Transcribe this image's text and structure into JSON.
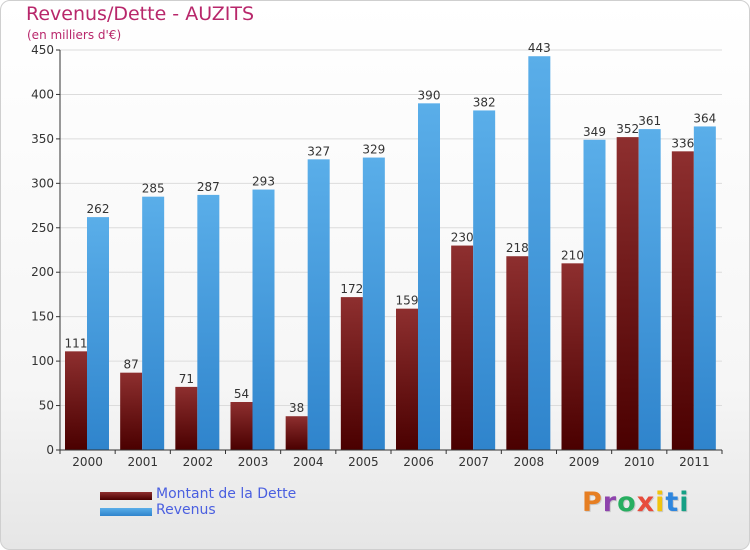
{
  "header": {
    "title": "Revenus/Dette - AUZITS",
    "subtitle": "(en milliers d'€)"
  },
  "chart_data": {
    "type": "bar",
    "title": "Revenus/Dette - AUZITS",
    "ylabel": "(en milliers d'€)",
    "xlabel": "",
    "categories": [
      "2000",
      "2001",
      "2002",
      "2003",
      "2004",
      "2005",
      "2006",
      "2007",
      "2008",
      "2009",
      "2010",
      "2011"
    ],
    "series": [
      {
        "name": "Montant de la Dette",
        "values": [
          111,
          87,
          71,
          54,
          38,
          172,
          159,
          230,
          218,
          210,
          352,
          336
        ],
        "color": "#7a1515"
      },
      {
        "name": "Revenus",
        "values": [
          262,
          285,
          287,
          293,
          327,
          329,
          390,
          382,
          443,
          349,
          361,
          364
        ],
        "color": "#4ba3e6"
      }
    ],
    "ylim": [
      0,
      450
    ],
    "yticks": [
      0,
      50,
      100,
      150,
      200,
      250,
      300,
      350,
      400,
      450
    ],
    "grid": true,
    "legend": "bottom-left"
  },
  "legend": {
    "items": [
      {
        "label": "Montant de la Dette",
        "color": "#7a1515"
      },
      {
        "label": "Revenus",
        "color": "#4ba3e6"
      }
    ]
  },
  "branding": {
    "logo_text": "Proxiti",
    "logo_colors": [
      "#e67e22",
      "#8e44ad",
      "#27ae60",
      "#e74c3c",
      "#f1c40f",
      "#2e86de",
      "#16a085"
    ]
  }
}
